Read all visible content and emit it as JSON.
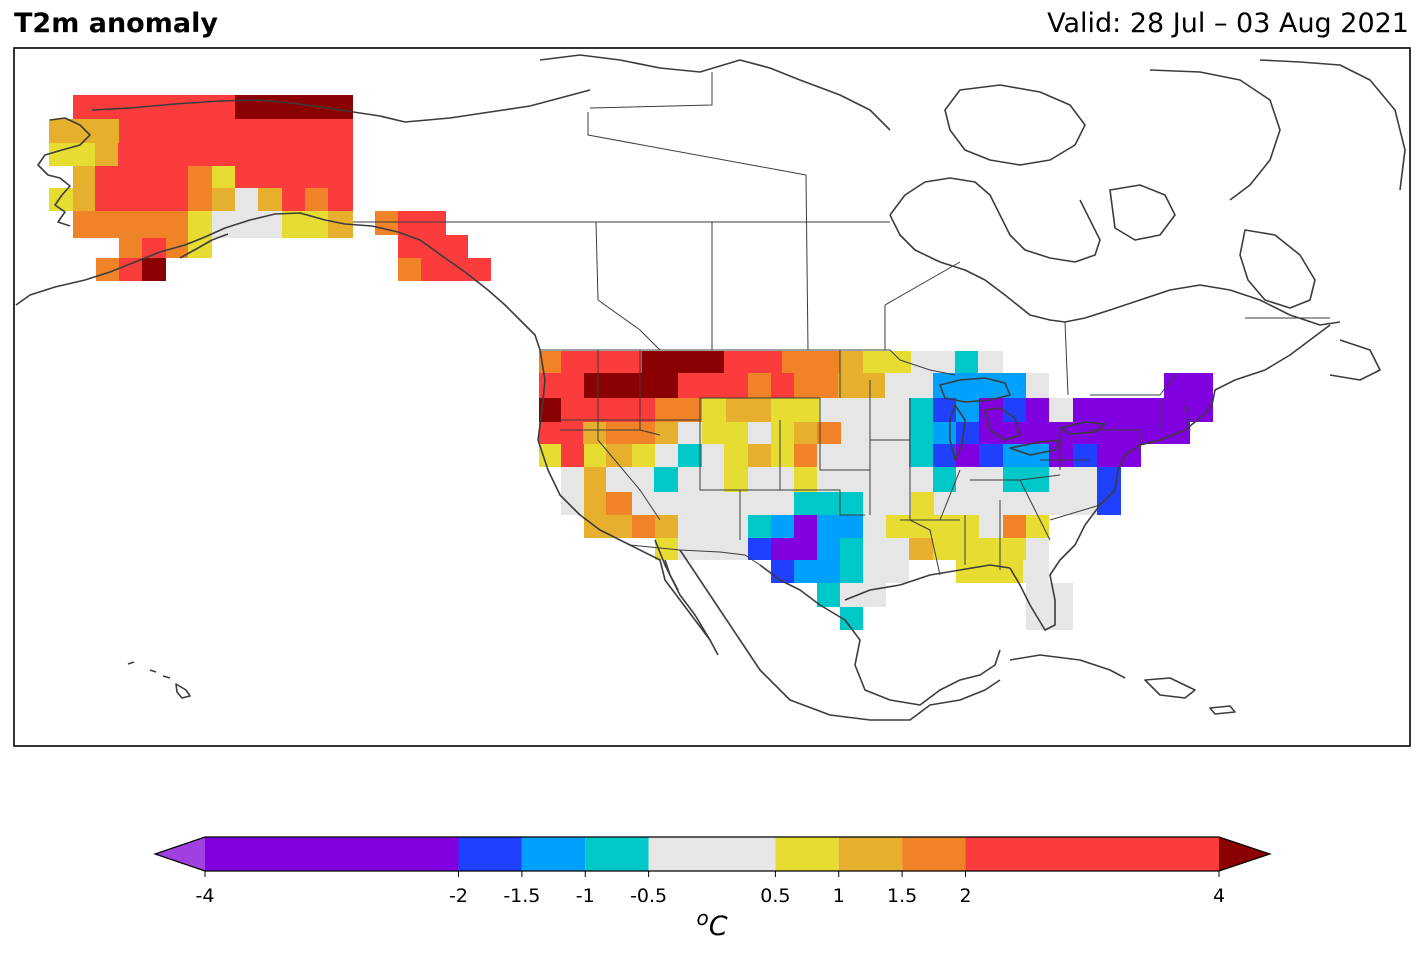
{
  "title": "T2m anomaly",
  "valid": "Valid: 28 Jul – 03 Aug 2021",
  "colorbar": {
    "unit": "oC",
    "unit_base": "C",
    "unit_super": "o",
    "min": -4,
    "max": 4,
    "boundaries": [
      -4,
      -2,
      -1.5,
      -1,
      -0.5,
      0.5,
      1,
      1.5,
      2,
      4
    ],
    "tick_labels": [
      "-4",
      "-2",
      "-1.5",
      "-1",
      "-0.5",
      "0.5",
      "1",
      "1.5",
      "2",
      "4"
    ],
    "colors": [
      "#8000e0",
      "#2040ff",
      "#00a0ff",
      "#00c8c8",
      "#e6e6e6",
      "#e6dc32",
      "#e6af2d",
      "#f08228",
      "#fa3c3c"
    ],
    "under_color": "#a040e0",
    "over_color": "#8b0000"
  }
}
